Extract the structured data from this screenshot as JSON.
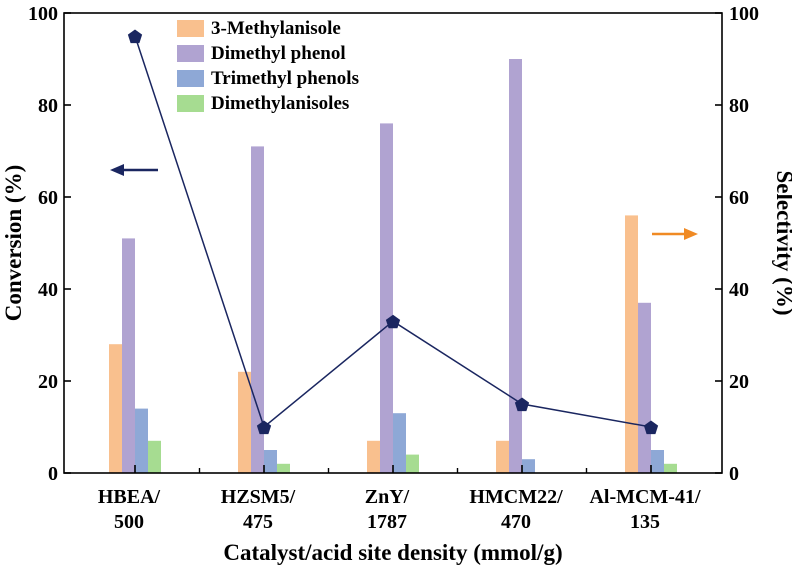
{
  "chart_data": {
    "type": "bar",
    "categories": [
      [
        "HBEA/",
        "500"
      ],
      [
        "HZSM5/",
        "475"
      ],
      [
        "ZnY/",
        "1787"
      ],
      [
        "HMCM22/",
        "470"
      ],
      [
        "Al-MCM-41/",
        "135"
      ]
    ],
    "xlabel": "Catalyst/acid site density (mmol/g)",
    "ylabel_left": "Conversion (%)",
    "ylabel_right": "Selectivity (%)",
    "ylim_left": [
      0,
      100
    ],
    "ylim_right": [
      0,
      100
    ],
    "yticks": [
      0,
      20,
      40,
      60,
      80,
      100
    ],
    "series": [
      {
        "name": "3-Methylanisole",
        "axis": "right",
        "color": "#f9c08e",
        "values": [
          28,
          22,
          7,
          7,
          56
        ]
      },
      {
        "name": "Dimethyl phenol",
        "axis": "right",
        "color": "#b0a3d1",
        "values": [
          51,
          71,
          76,
          90,
          37
        ]
      },
      {
        "name": "Trimethyl phenols",
        "axis": "right",
        "color": "#8ea8d6",
        "values": [
          14,
          5,
          13,
          3,
          5
        ]
      },
      {
        "name": "Dimethylanisoles",
        "axis": "right",
        "color": "#a6dc91",
        "values": [
          7,
          2,
          4,
          0,
          2
        ]
      }
    ],
    "line": {
      "label": "Conversion",
      "axis": "left",
      "color": "#1a2660",
      "marker": "pentagon",
      "values": [
        95,
        10,
        33,
        15,
        10
      ]
    },
    "arrows": [
      {
        "points_to": "left axis",
        "color": "#1a2660"
      },
      {
        "points_to": "right axis",
        "color": "#f08a24"
      }
    ],
    "legend": "top-center",
    "grid": false
  }
}
